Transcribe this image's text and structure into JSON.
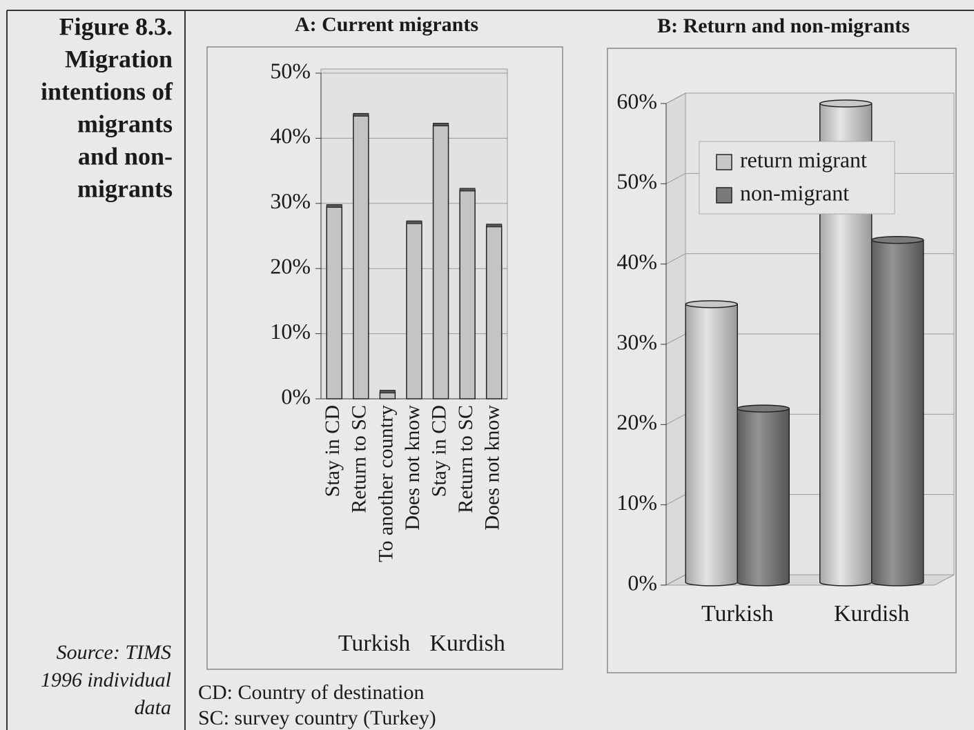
{
  "figure": {
    "title_lines": [
      "Figure 8.3.",
      "Migration",
      "intentions of",
      "migrants",
      "and non-",
      "migrants"
    ],
    "source_lines": [
      "Source: TIMS",
      "1996 individual",
      "data"
    ]
  },
  "notes": [
    "CD: Country of destination",
    "SC: survey country (Turkey)"
  ],
  "chart_data": [
    {
      "type": "bar",
      "title": "A: Current migrants",
      "color": "#c4c4c4",
      "groups": [
        {
          "name": "Turkish",
          "categories": [
            "Stay in CD",
            "Return to SC",
            "To another country",
            "Does not know"
          ],
          "values": [
            29.5,
            43.5,
            1,
            27
          ]
        },
        {
          "name": "Kurdish",
          "categories": [
            "Stay in CD",
            "Return to SC",
            "Does not know"
          ],
          "values": [
            42,
            32,
            26.5
          ]
        }
      ],
      "ylim": [
        0,
        50
      ],
      "yticks": [
        {
          "value": 0,
          "label": "0%"
        },
        {
          "value": 10,
          "label": "10%"
        },
        {
          "value": 20,
          "label": "20%"
        },
        {
          "value": 30,
          "label": "30%"
        },
        {
          "value": 40,
          "label": "40%"
        },
        {
          "value": 50,
          "label": "50%"
        }
      ],
      "grid": true
    },
    {
      "type": "cylinder-bar",
      "title": "B: Return and non-migrants",
      "categories": [
        "Turkish",
        "Kurdish"
      ],
      "series": [
        {
          "name": "return migrant",
          "color": "#c8c8c8",
          "values": [
            35,
            60
          ]
        },
        {
          "name": "non-migrant",
          "color": "#7a7a7a",
          "values": [
            22,
            43
          ]
        }
      ],
      "ylim": [
        0,
        60
      ],
      "yticks": [
        {
          "value": 0,
          "label": "0%"
        },
        {
          "value": 10,
          "label": "10%"
        },
        {
          "value": 20,
          "label": "20%"
        },
        {
          "value": 30,
          "label": "30%"
        },
        {
          "value": 40,
          "label": "40%"
        },
        {
          "value": 50,
          "label": "50%"
        },
        {
          "value": 60,
          "label": "60%"
        }
      ],
      "grid": true,
      "legend": "upper right"
    }
  ]
}
